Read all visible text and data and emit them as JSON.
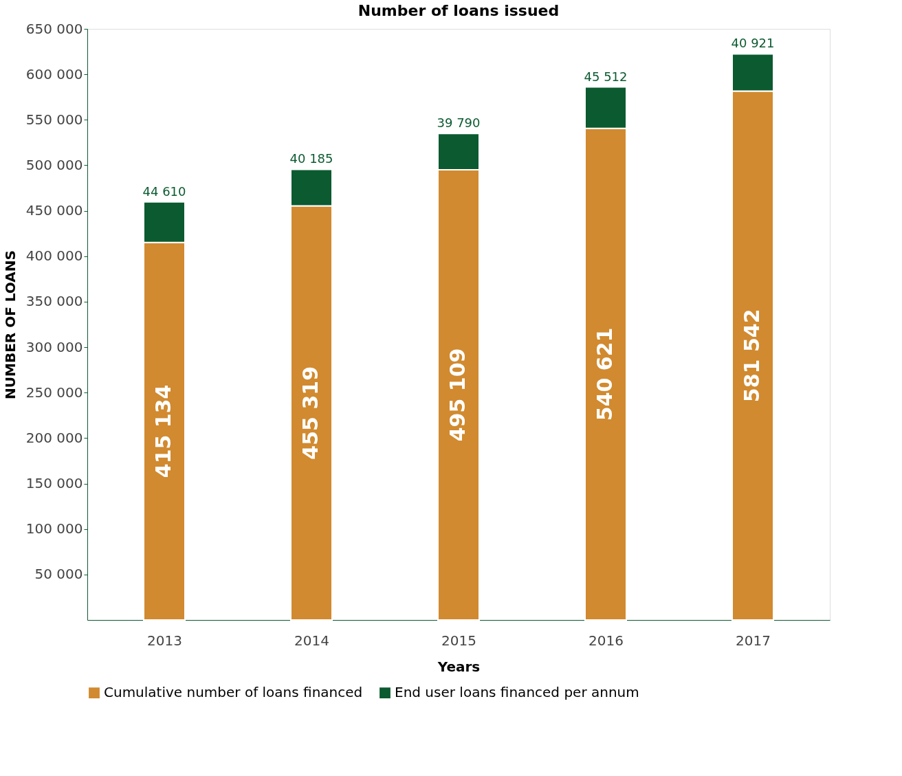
{
  "chart_data": {
    "type": "bar",
    "title": "Number of loans issued",
    "xlabel": "Years",
    "ylabel": "NUMBER OF LOANS",
    "categories": [
      "2013",
      "2014",
      "2015",
      "2016",
      "2017"
    ],
    "stacked": true,
    "series": [
      {
        "name": "Cumulative number of loans financed",
        "color": "#d18a2f",
        "values": [
          415134,
          455319,
          495109,
          540621,
          581542
        ],
        "value_labels": [
          "415 134",
          "455 319",
          "495 109",
          "540 621",
          "581 542"
        ]
      },
      {
        "name": "End user loans financed per annum",
        "color": "#0b5a30",
        "values": [
          44610,
          40185,
          39790,
          45512,
          40921
        ],
        "value_labels": [
          "44 610",
          "40 185",
          "39 790",
          "45 512",
          "40 921"
        ]
      }
    ],
    "ylim": [
      0,
      650000
    ],
    "yticks": [
      {
        "value": 50000,
        "label": "50 000"
      },
      {
        "value": 100000,
        "label": "100 000"
      },
      {
        "value": 150000,
        "label": "150 000"
      },
      {
        "value": 200000,
        "label": "200 000"
      },
      {
        "value": 250000,
        "label": "250 000"
      },
      {
        "value": 300000,
        "label": "300 000"
      },
      {
        "value": 350000,
        "label": "350 000"
      },
      {
        "value": 400000,
        "label": "400 000"
      },
      {
        "value": 450000,
        "label": "450 000"
      },
      {
        "value": 500000,
        "label": "500 000"
      },
      {
        "value": 550000,
        "label": "550 000"
      },
      {
        "value": 600000,
        "label": "600 000"
      },
      {
        "value": 650000,
        "label": "650 000"
      }
    ],
    "grid": false,
    "legend": "bottom"
  }
}
